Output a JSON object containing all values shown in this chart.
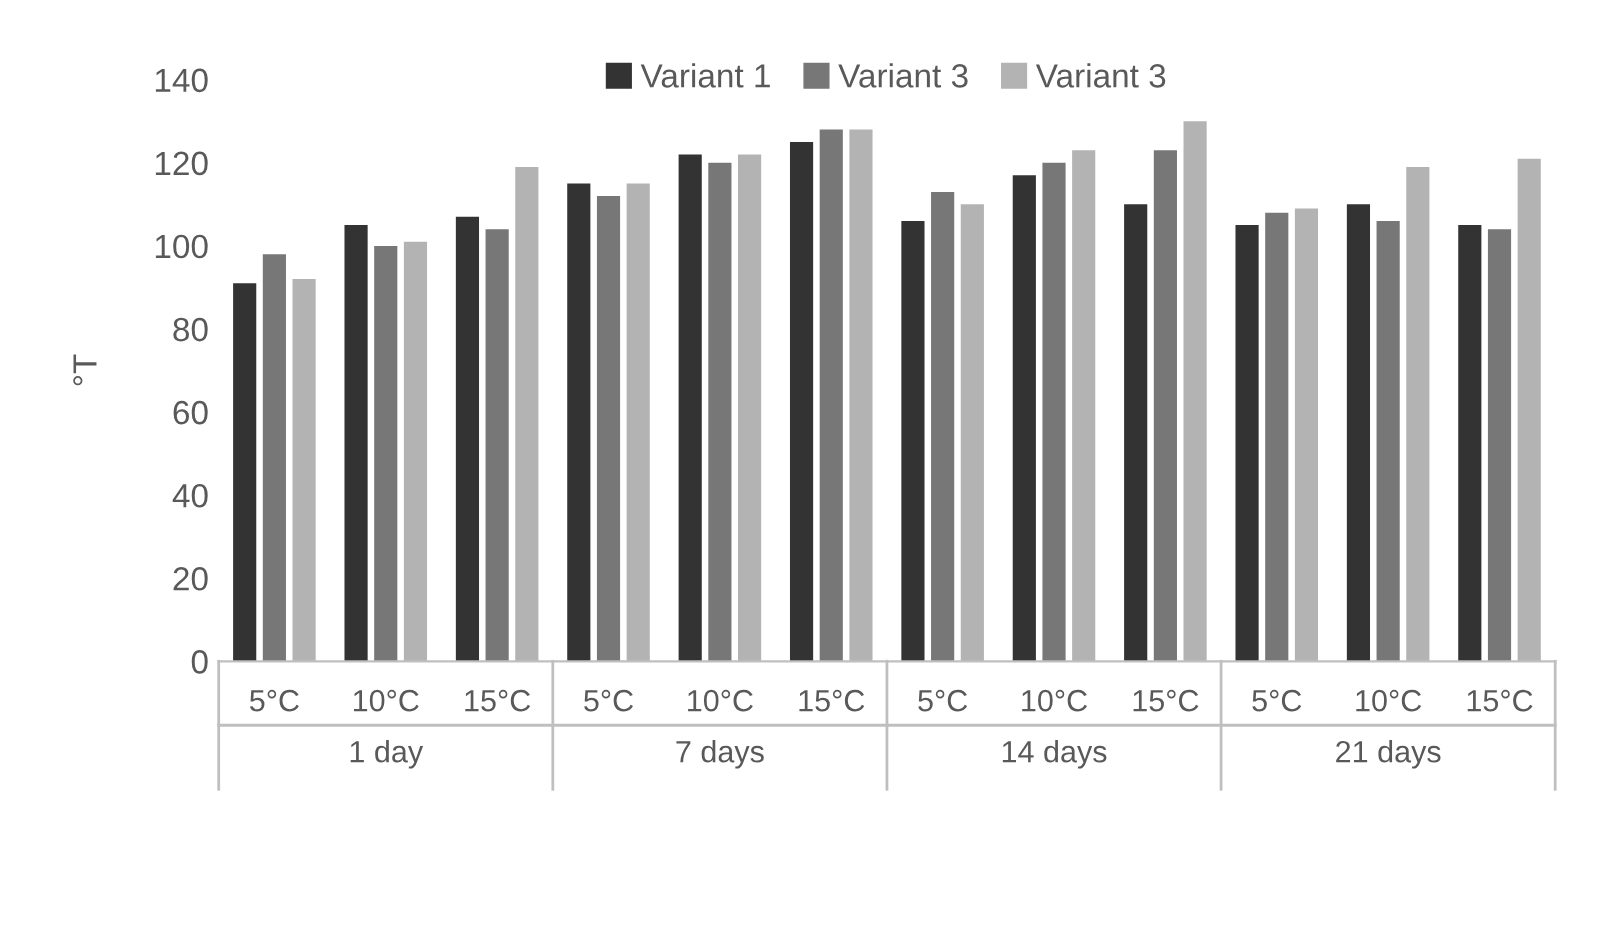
{
  "chart_data": {
    "type": "bar",
    "ylabel": "°T",
    "categories": [
      "5°C",
      "10°C",
      "15°C",
      "5°C",
      "10°C",
      "15°C",
      "5°C",
      "10°C",
      "15°C",
      "5°C",
      "10°C",
      "15°C"
    ],
    "series": [
      {
        "name": "Variant 1",
        "color": "#333333",
        "values": [
          91,
          105,
          107,
          115,
          122,
          125,
          106,
          117,
          110,
          105,
          110,
          105
        ]
      },
      {
        "name": "Variant 3",
        "color": "#777777",
        "values": [
          98,
          100,
          104,
          112,
          120,
          128,
          113,
          120,
          123,
          108,
          106,
          104
        ]
      },
      {
        "name": "Variant 3",
        "color": "#b3b3b3",
        "values": [
          92,
          101,
          119,
          115,
          122,
          128,
          110,
          123,
          130,
          109,
          119,
          121
        ]
      }
    ],
    "annotations": [
      "1 day",
      "7 days",
      "14 days",
      "21 days"
    ],
    "ylim": [
      0,
      140
    ],
    "yticks": [
      0,
      20,
      40,
      60,
      80,
      100,
      120,
      140
    ],
    "grid": false,
    "legend": "top"
  }
}
